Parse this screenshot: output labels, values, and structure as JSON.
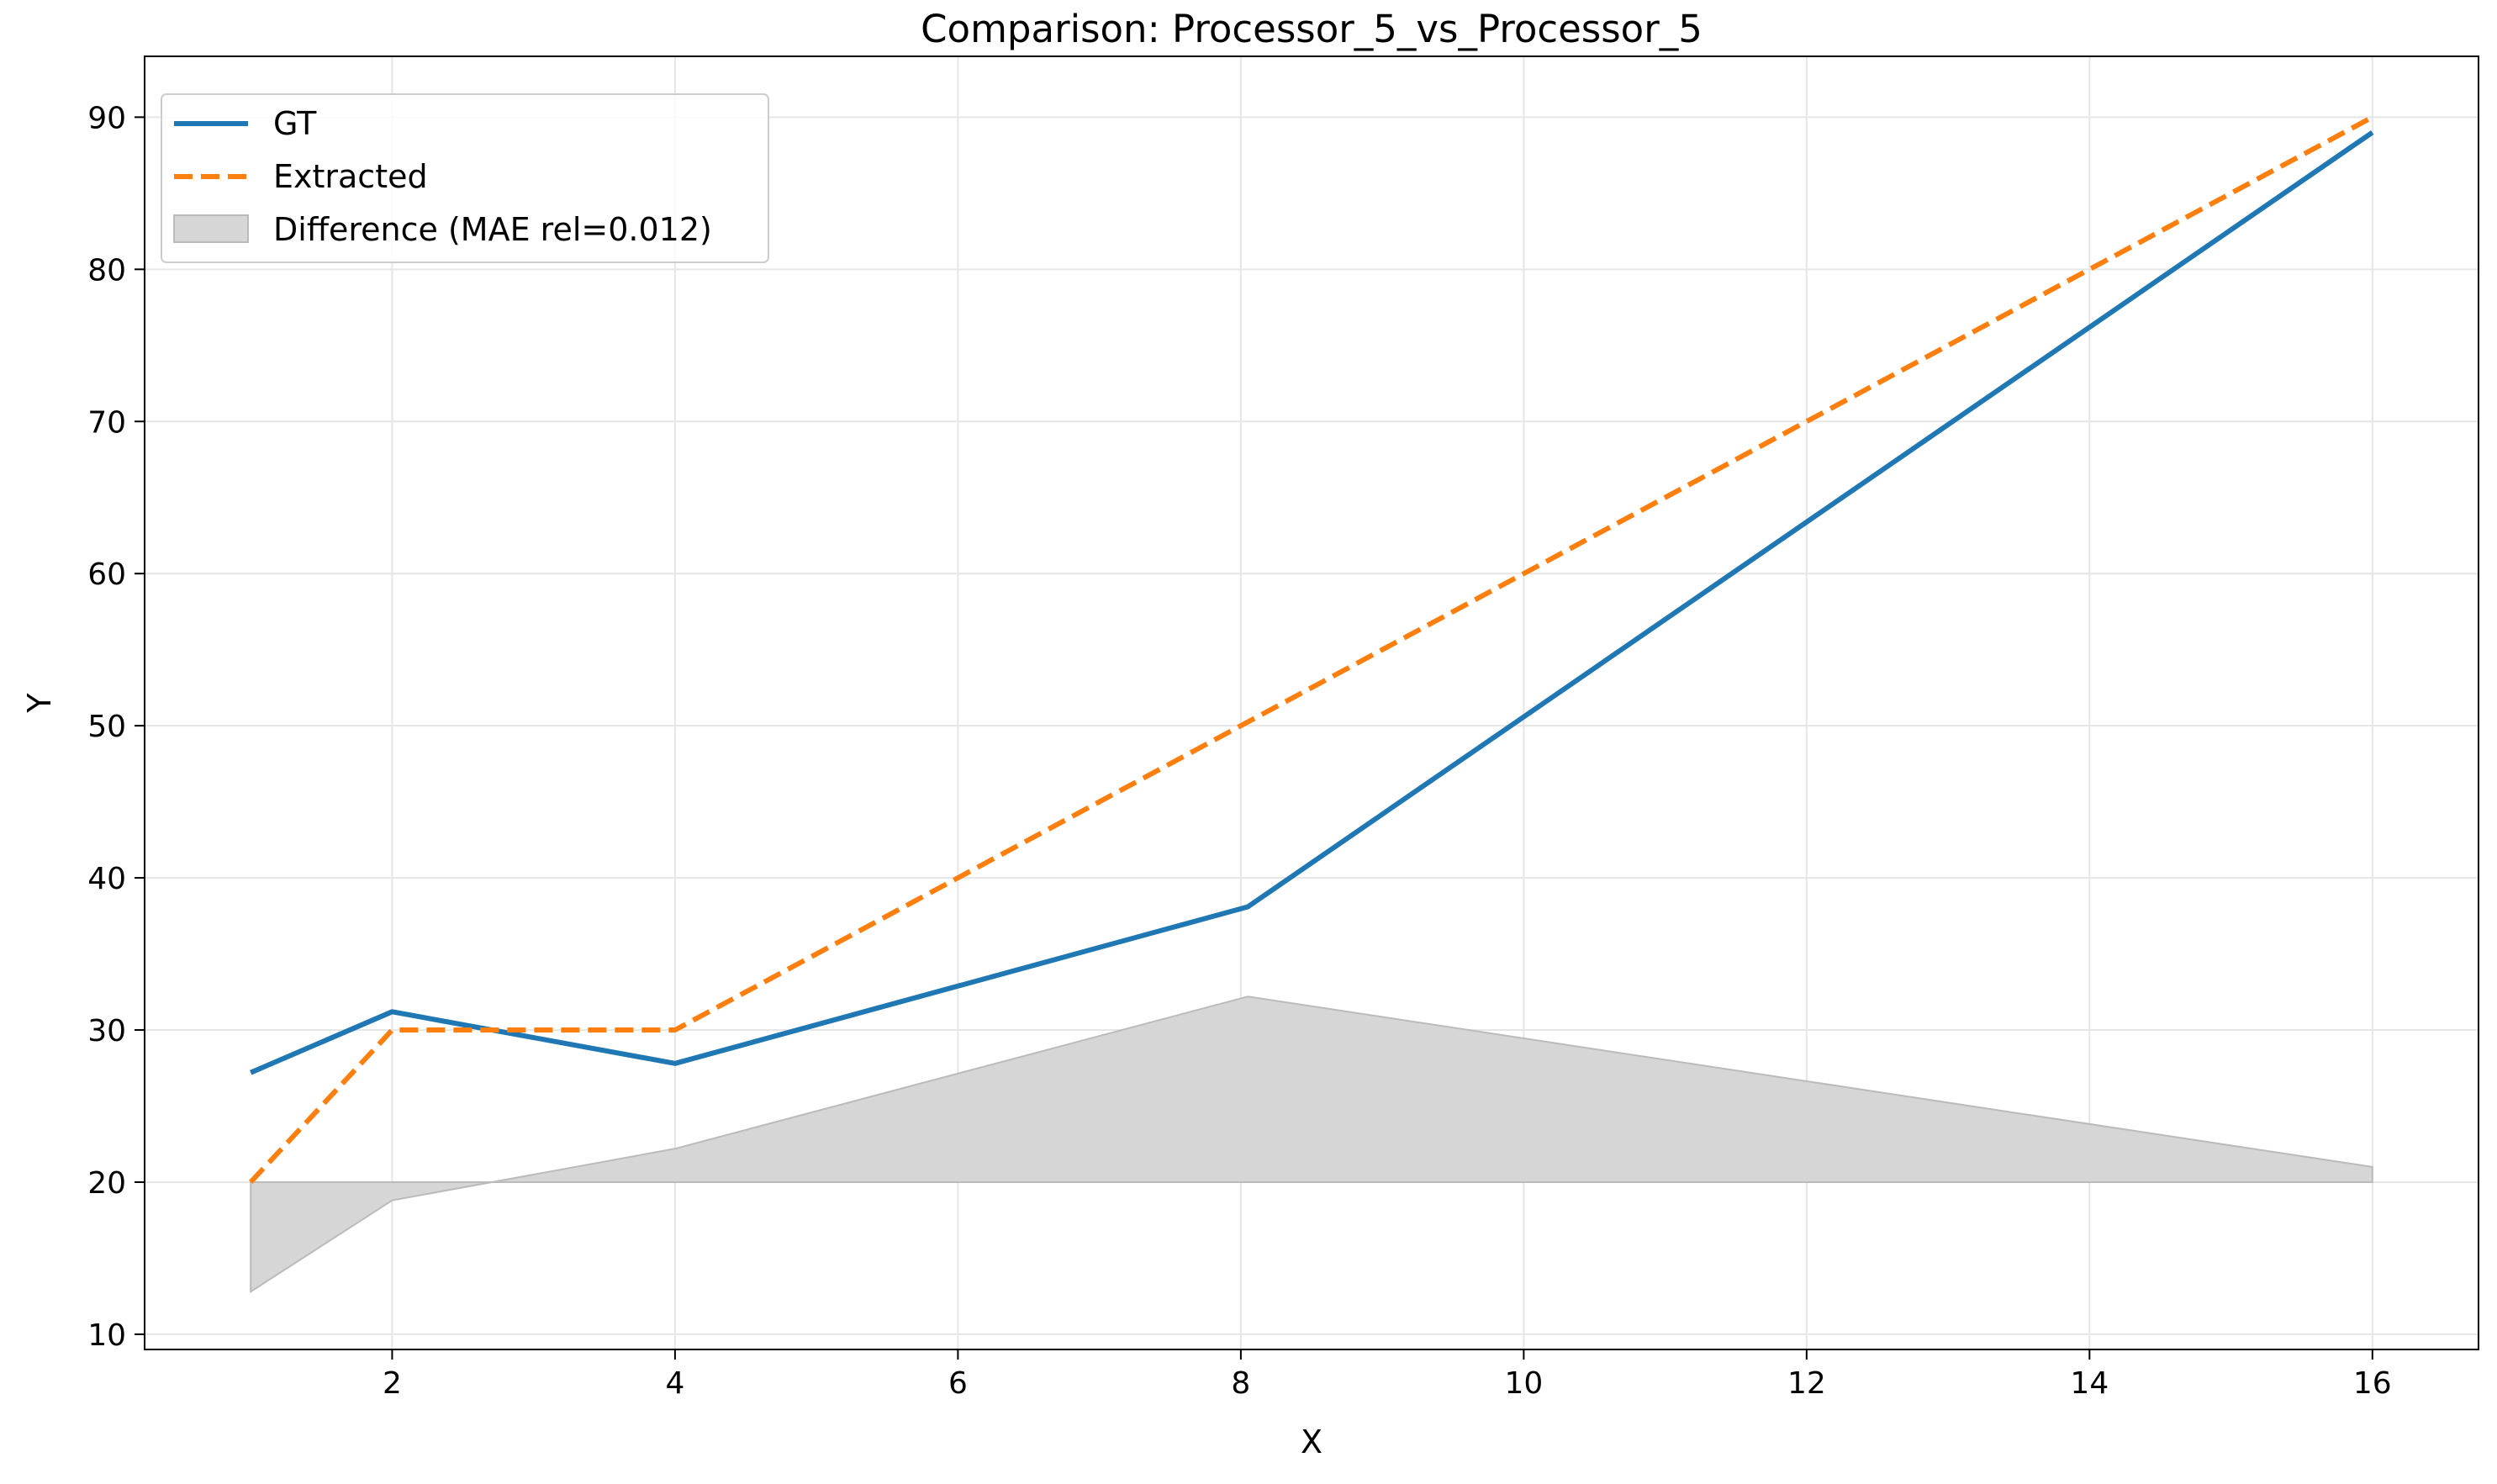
{
  "chart_data": {
    "type": "line",
    "title": "Comparison: Processor_5_vs_Processor_5",
    "xlabel": "X",
    "ylabel": "Y",
    "xlim": [
      0.25,
      16.75
    ],
    "ylim": [
      9,
      94
    ],
    "x_ticks": [
      2,
      4,
      6,
      8,
      10,
      12,
      14,
      16
    ],
    "x_tick_labels": [
      "2",
      "4",
      "6",
      "8",
      "10",
      "12",
      "14",
      "16"
    ],
    "y_ticks": [
      10,
      20,
      30,
      40,
      50,
      60,
      70,
      80,
      90
    ],
    "y_tick_labels": [
      "10",
      "20",
      "30",
      "40",
      "50",
      "60",
      "70",
      "80",
      "90"
    ],
    "grid": true,
    "legend_position": "top-left",
    "series": [
      {
        "name": "GT",
        "style": "solid",
        "color": "#1f77b4",
        "x": [
          1,
          2,
          4,
          8.05,
          16
        ],
        "y": [
          27.2,
          31.2,
          27.8,
          38.1,
          89
        ]
      },
      {
        "name": "Extracted",
        "style": "dashed",
        "color": "#ff7f0e",
        "x": [
          1,
          2,
          4,
          16
        ],
        "y": [
          20,
          30,
          30,
          90
        ]
      }
    ],
    "difference": {
      "name": "Difference (MAE rel=0.012)",
      "color": "#d6d6d6",
      "edge_color": "#bbbbbb",
      "baseline": 20,
      "x": [
        1,
        2,
        4,
        8.05,
        16
      ],
      "y": [
        12.8,
        18.8,
        22.2,
        32.2,
        21
      ]
    }
  }
}
